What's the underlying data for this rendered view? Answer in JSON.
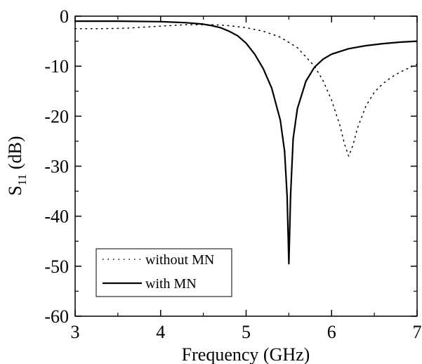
{
  "chart_data": {
    "type": "line",
    "xlabel": "Frequency (GHz)",
    "ylabel": "S",
    "ylabel_sub": "11",
    "ylabel_suffix": " (dB)",
    "xlim": [
      3,
      7
    ],
    "ylim": [
      -60,
      0
    ],
    "xticks": [
      3,
      4,
      5,
      6,
      7
    ],
    "yticks": [
      0,
      -10,
      -20,
      -30,
      -40,
      -50,
      -60
    ],
    "xtick_labels": [
      "3",
      "4",
      "5",
      "6",
      "7"
    ],
    "ytick_labels": [
      "0",
      "-10",
      "-20",
      "-30",
      "-40",
      "-50",
      "-60"
    ],
    "grid": false,
    "legend_position": "bottom-left",
    "series": [
      {
        "name": "without MN",
        "style": "dotted",
        "color": "#000000",
        "x": [
          3.0,
          3.3,
          3.6,
          4.0,
          4.3,
          4.6,
          4.8,
          5.0,
          5.2,
          5.4,
          5.6,
          5.8,
          5.9,
          6.0,
          6.1,
          6.15,
          6.2,
          6.25,
          6.3,
          6.4,
          6.5,
          6.6,
          6.7,
          6.8,
          6.9,
          7.0
        ],
        "y": [
          -2.5,
          -2.5,
          -2.4,
          -2.0,
          -1.7,
          -1.7,
          -1.9,
          -2.3,
          -3.0,
          -4.2,
          -6.3,
          -10.0,
          -12.9,
          -16.8,
          -22.0,
          -25.5,
          -28.0,
          -25.8,
          -22.5,
          -18.0,
          -15.2,
          -13.5,
          -12.2,
          -11.2,
          -10.4,
          -9.6
        ]
      },
      {
        "name": "with MN",
        "style": "solid",
        "color": "#000000",
        "x": [
          3.0,
          3.5,
          4.0,
          4.3,
          4.5,
          4.6,
          4.7,
          4.8,
          4.9,
          5.0,
          5.1,
          5.2,
          5.3,
          5.4,
          5.45,
          5.48,
          5.5,
          5.52,
          5.55,
          5.6,
          5.7,
          5.8,
          5.9,
          6.0,
          6.2,
          6.4,
          6.6,
          6.8,
          7.0
        ],
        "y": [
          -1.0,
          -1.0,
          -1.1,
          -1.3,
          -1.6,
          -1.9,
          -2.3,
          -3.0,
          -3.9,
          -5.4,
          -7.6,
          -10.5,
          -14.4,
          -20.8,
          -27.0,
          -36.0,
          -49.5,
          -36.0,
          -24.5,
          -18.5,
          -13.0,
          -10.2,
          -8.6,
          -7.6,
          -6.5,
          -5.9,
          -5.5,
          -5.2,
          -5.0
        ]
      }
    ]
  }
}
